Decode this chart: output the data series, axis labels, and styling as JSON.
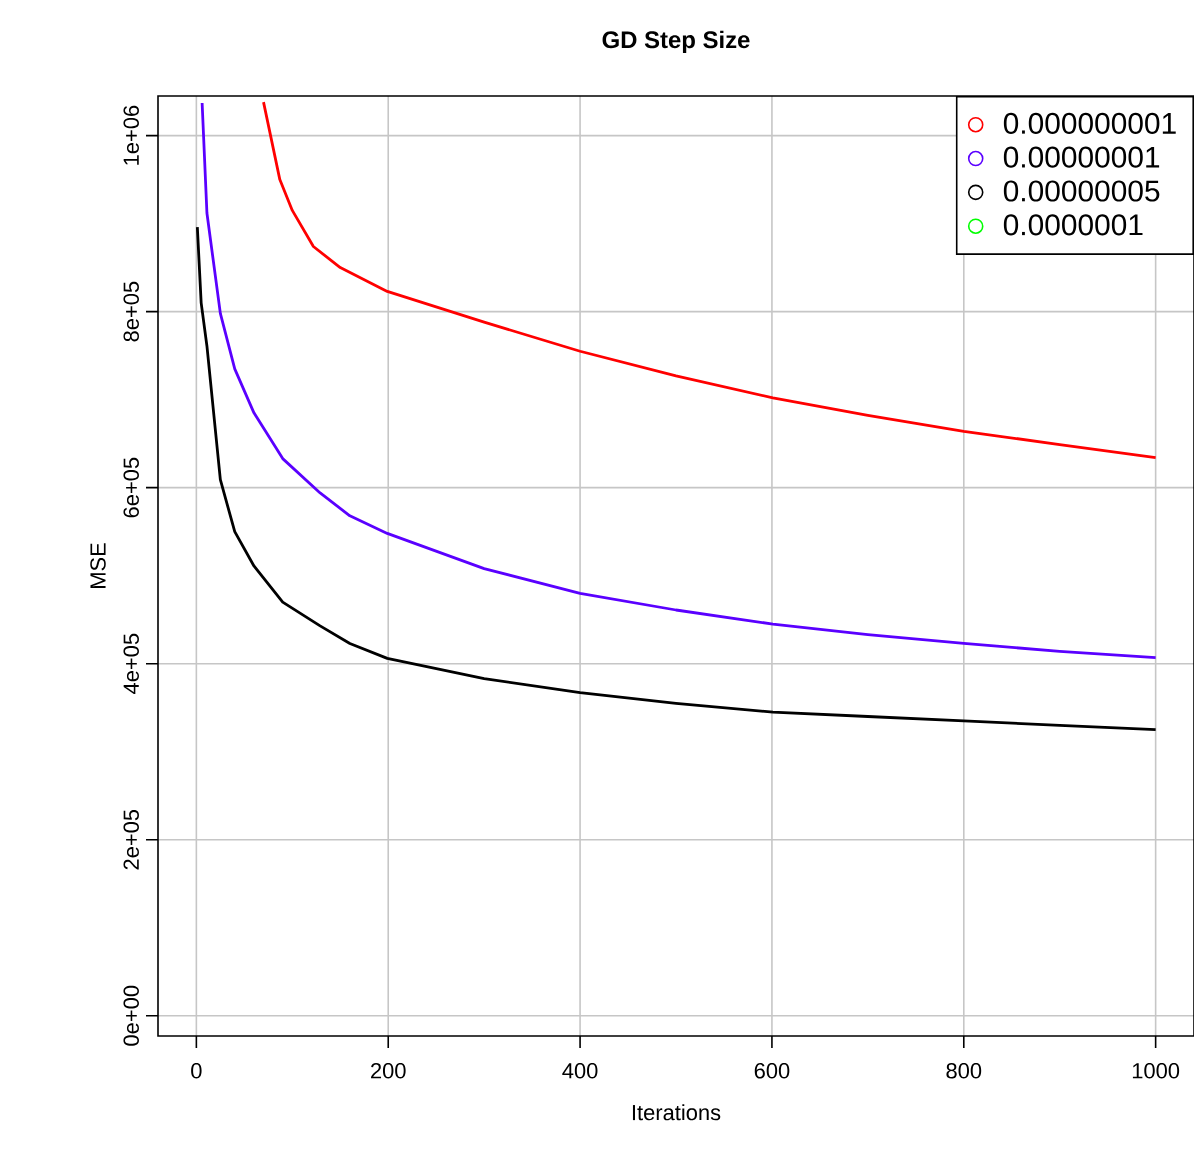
{
  "chart_data": {
    "type": "line",
    "title": "GD Step Size",
    "xlabel": "Iterations",
    "ylabel": "MSE",
    "xlim": [
      -40,
      1040
    ],
    "ylim": [
      -23000,
      1045000
    ],
    "xticks": [
      0,
      200,
      400,
      600,
      800,
      1000
    ],
    "yticks": [
      {
        "value": 0,
        "label": "0e+00"
      },
      {
        "value": 200000,
        "label": "2e+05"
      },
      {
        "value": 400000,
        "label": "4e+05"
      },
      {
        "value": 600000,
        "label": "6e+05"
      },
      {
        "value": 800000,
        "label": "8e+05"
      },
      {
        "value": 1000000,
        "label": "1e+06"
      }
    ],
    "grid": true,
    "legend": "top right",
    "marker": "none",
    "line_style": "solid",
    "series": [
      {
        "name": "0.000000001",
        "color": "#ff0000",
        "x": [
          70,
          87,
          100,
          122,
          150,
          199,
          300,
          400,
          500,
          601,
          700,
          800,
          900,
          1000
        ],
        "values": [
          1038000,
          950000,
          915000,
          874000,
          850000,
          823000,
          788000,
          755000,
          727000,
          702000,
          682000,
          664000,
          649000,
          634000
        ]
      },
      {
        "name": "0.00000001",
        "color": "#5a00ff",
        "x": [
          6,
          11,
          25,
          40,
          60,
          90,
          129,
          160,
          199,
          300,
          400,
          500,
          601,
          700,
          800,
          900,
          1000
        ],
        "values": [
          1037000,
          912000,
          798000,
          735000,
          685000,
          633000,
          594000,
          568000,
          548000,
          508000,
          480000,
          461000,
          445000,
          433000,
          423000,
          414000,
          407000
        ]
      },
      {
        "name": "0.00000005",
        "color": "#000000",
        "x": [
          1,
          5,
          11,
          25,
          40,
          60,
          90,
          129,
          160,
          199,
          300,
          400,
          500,
          601,
          700,
          800,
          900,
          1000
        ],
        "values": [
          896000,
          810000,
          761000,
          609000,
          550000,
          511000,
          470000,
          443000,
          423000,
          406000,
          383000,
          367000,
          355000,
          345000,
          340000,
          335000,
          330000,
          325000
        ]
      },
      {
        "name": "0.0000001",
        "color": "#00ff00"
      }
    ]
  }
}
